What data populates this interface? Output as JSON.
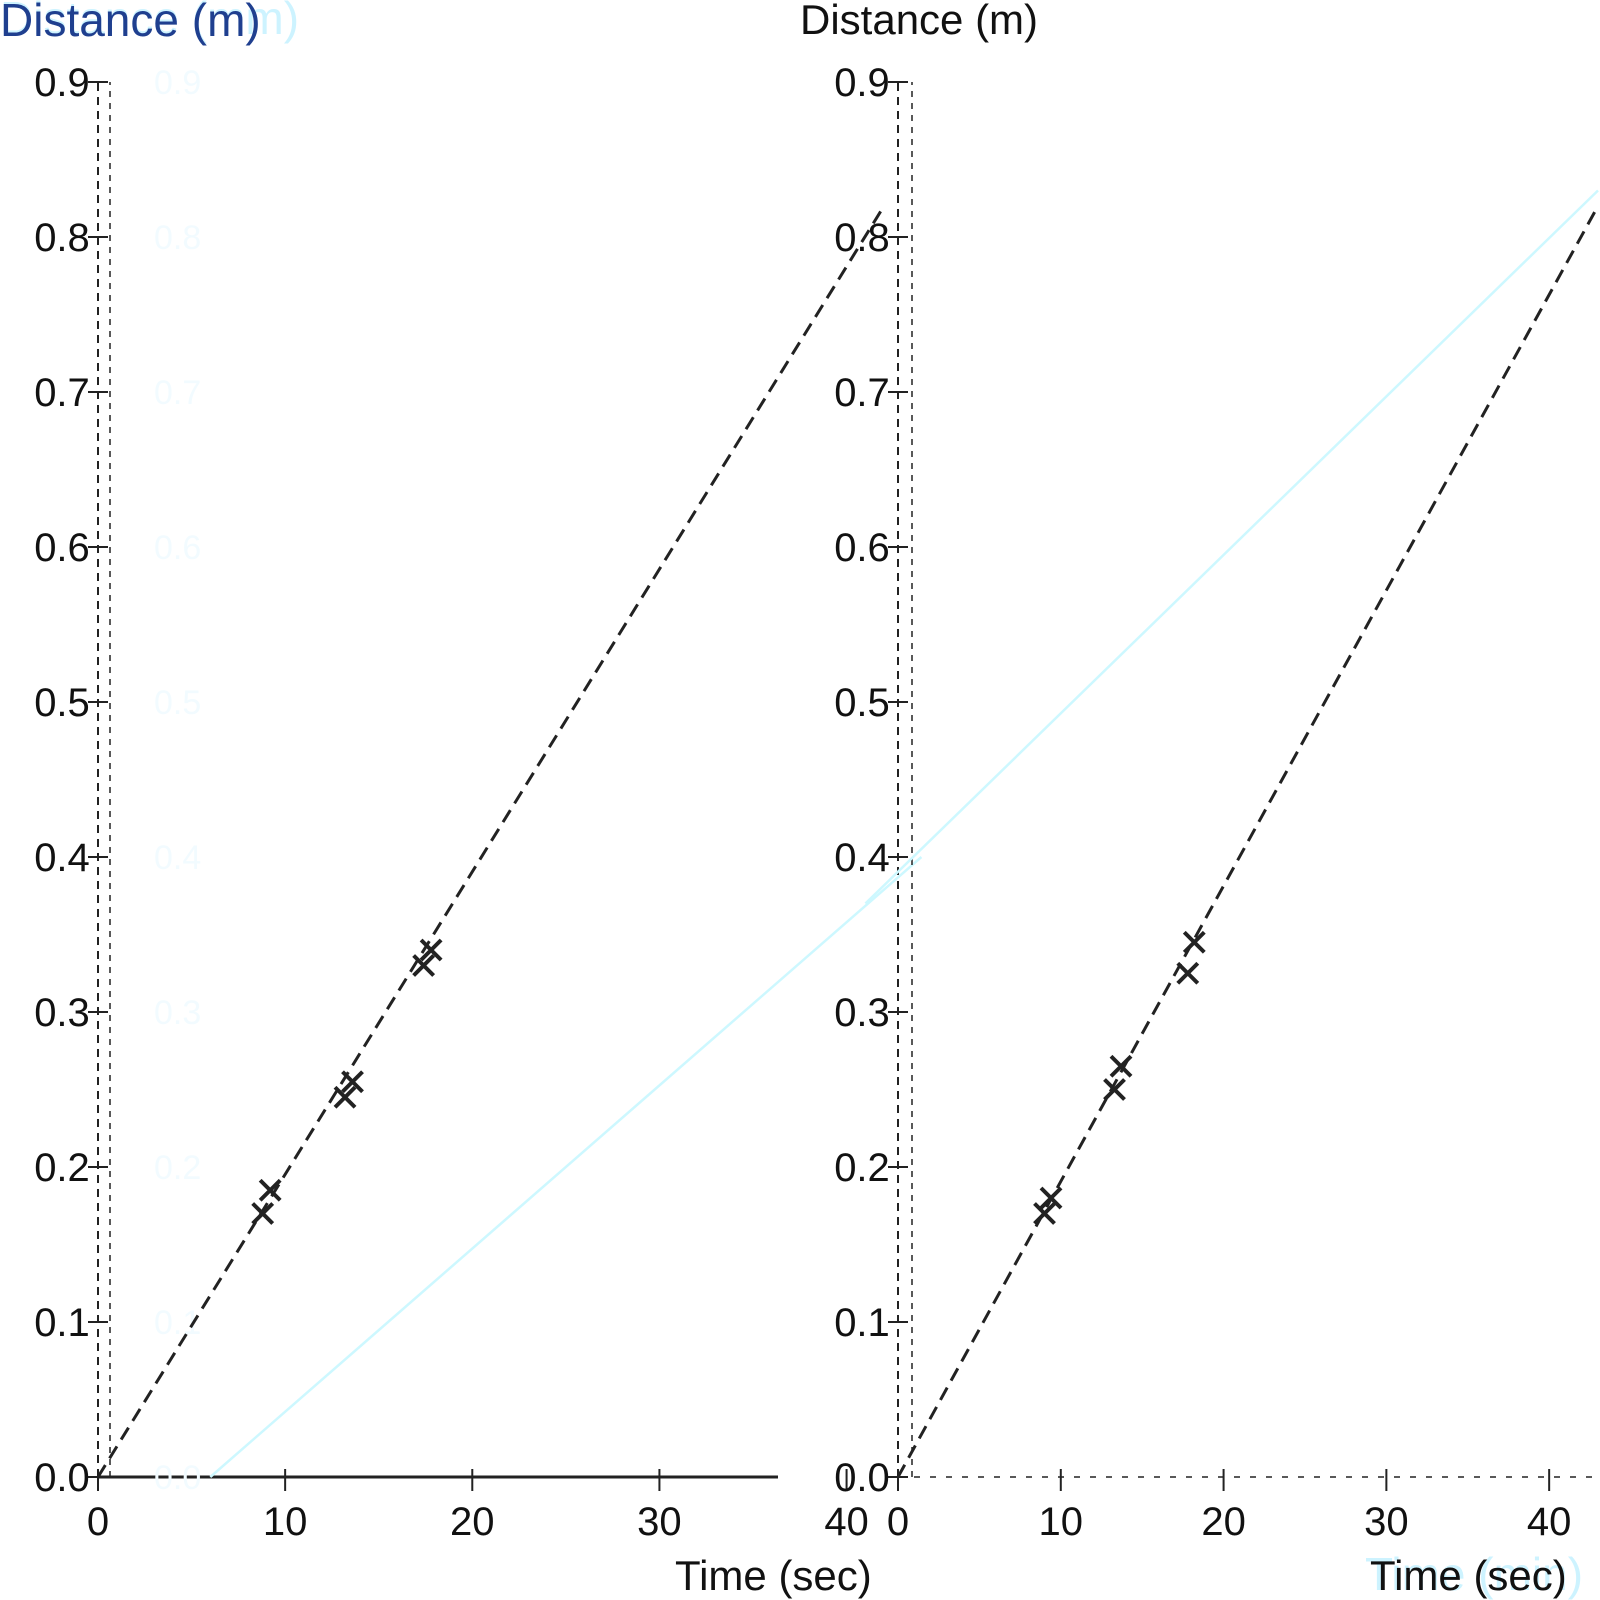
{
  "colors": {
    "background": "#ffffff",
    "series_dark": "#222222",
    "series_cyan": "#cdf8ff",
    "axis": "#222222",
    "faint_labels": "#f2fbff",
    "title_blue": "#1f3f8f",
    "title_cyan": "#cdf3ff"
  },
  "chart_data": [
    {
      "type": "line",
      "panel": "left",
      "title": "",
      "xlabel": "Time (sec)",
      "ylabel": "Distance (m)",
      "ylabel_secondary": "Distance (mm)",
      "xlim": [
        0,
        4.2
      ],
      "ylim": [
        0,
        0.9
      ],
      "x_ticks": [
        0,
        1,
        2,
        3,
        4
      ],
      "x_tick_labels": [
        "0",
        "10",
        "20",
        "30",
        "40"
      ],
      "y_ticks": [
        0.0,
        0.1,
        0.2,
        0.3,
        0.4,
        0.5,
        0.6,
        0.7,
        0.8,
        0.9
      ],
      "y_tick_labels": [
        "0.0",
        "0.1",
        "0.2",
        "0.3",
        "0.4",
        "0.5",
        "0.6",
        "0.7",
        "0.8",
        "0.9"
      ],
      "grid": false,
      "legend": "none",
      "series": [
        {
          "style": "dashed",
          "color": "#222222",
          "x": [
            0.0,
            4.2
          ],
          "y": [
            0.0,
            0.82
          ],
          "markers": [
            {
              "x": 0.88,
              "y": 0.17
            },
            {
              "x": 0.92,
              "y": 0.185
            },
            {
              "x": 1.32,
              "y": 0.245
            },
            {
              "x": 1.36,
              "y": 0.255
            },
            {
              "x": 1.74,
              "y": 0.33
            },
            {
              "x": 1.78,
              "y": 0.34
            }
          ]
        },
        {
          "style": "solid",
          "color": "#cdf8ff",
          "x": [
            0.6,
            4.4
          ],
          "y": [
            0.0,
            0.4
          ]
        }
      ]
    },
    {
      "type": "line",
      "panel": "right",
      "title": "",
      "xlabel": "Time (sec)",
      "xlabel_secondary": "Time (min)",
      "ylabel": "Distance (m)",
      "xlim": [
        0,
        4.3
      ],
      "ylim": [
        0,
        0.9
      ],
      "x_ticks": [
        0,
        1,
        2,
        3,
        4
      ],
      "x_tick_labels": [
        "0",
        "10",
        "20",
        "30",
        "40"
      ],
      "y_ticks": [
        0.0,
        0.1,
        0.2,
        0.3,
        0.4,
        0.5,
        0.6,
        0.7,
        0.8,
        0.9
      ],
      "y_tick_labels": [
        "0.0",
        "0.1",
        "0.2",
        "0.3",
        "0.4",
        "0.5",
        "0.6",
        "0.7",
        "0.8",
        "0.9"
      ],
      "grid": false,
      "legend": "none",
      "series": [
        {
          "style": "dashed",
          "color": "#222222",
          "x": [
            0.0,
            4.3
          ],
          "y": [
            0.0,
            0.82
          ],
          "markers": [
            {
              "x": 0.9,
              "y": 0.17
            },
            {
              "x": 0.94,
              "y": 0.18
            },
            {
              "x": 1.33,
              "y": 0.25
            },
            {
              "x": 1.37,
              "y": 0.265
            },
            {
              "x": 1.78,
              "y": 0.325
            },
            {
              "x": 1.82,
              "y": 0.345
            }
          ]
        },
        {
          "style": "solid",
          "color": "#cdf8ff",
          "x": [
            -0.2,
            4.3
          ],
          "y": [
            0.37,
            0.83
          ]
        }
      ]
    }
  ]
}
